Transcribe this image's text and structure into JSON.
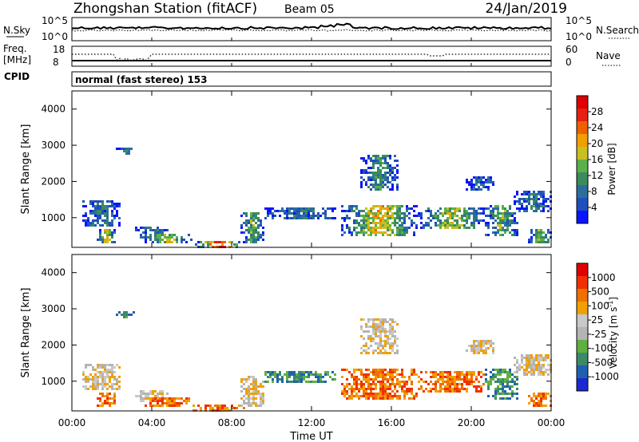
{
  "header": {
    "station": "Zhongshan Station (fitACF)",
    "beam": "Beam 05",
    "date": "24/Jan/2019"
  },
  "top_panels": {
    "nsky_label": "N.Sky",
    "nsky_ticks": [
      "10^5",
      "10^0"
    ],
    "nsearch_label": "N.Search",
    "nsearch_ticks": [
      "10^5",
      "10^0"
    ],
    "freq_label": "Freq.",
    "freq_unit": "[MHz]",
    "freq_ticks": [
      "18",
      "8"
    ],
    "nave_label": "Nave",
    "nave_ticks": [
      "60",
      "0"
    ],
    "cpid_label": "CPID",
    "cpid_text": "normal (fast stereo) 153"
  },
  "chart_data": [
    {
      "type": "heatmap",
      "name": "power",
      "ylabel": "Slant Range [km]",
      "y_ticks": [
        "4000",
        "3000",
        "2000",
        "1000"
      ],
      "ylim": [
        180,
        4500
      ],
      "x_ticks": [
        "00:00",
        "04:00",
        "08:00",
        "12:00",
        "16:00",
        "20:00",
        "00:00"
      ],
      "colorbar": {
        "label": "Power [dB]",
        "ticks": [
          "28",
          "24",
          "20",
          "16",
          "12",
          "8",
          "4"
        ],
        "colors": [
          "#0a14ff",
          "#1f4fbd",
          "#2a6e9e",
          "#3a8c5a",
          "#5ab04a",
          "#c8c020",
          "#f0a000",
          "#f06000",
          "#e82010",
          "#e00000"
        ]
      }
    },
    {
      "type": "heatmap",
      "name": "velocity",
      "ylabel": "Slant Range [km]",
      "y_ticks": [
        "4000",
        "3000",
        "2000",
        "1000"
      ],
      "ylim": [
        180,
        4500
      ],
      "x_ticks": [
        "00:00",
        "04:00",
        "08:00",
        "12:00",
        "16:00",
        "20:00",
        "00:00"
      ],
      "colorbar": {
        "label": "Velocity [m s",
        "label_sup": "-1",
        "label_end": "]",
        "ticks": [
          "1000",
          "500",
          "100",
          "25",
          "-25",
          "-100",
          "-500",
          "-1000"
        ],
        "colors": [
          "#1a2ad0",
          "#2060b0",
          "#3a8a6a",
          "#60b040",
          "#b4b4b4",
          "#c8c8c8",
          "#f0a000",
          "#f07000",
          "#f03000",
          "#e00000"
        ]
      }
    }
  ],
  "xlabel": "Time UT"
}
